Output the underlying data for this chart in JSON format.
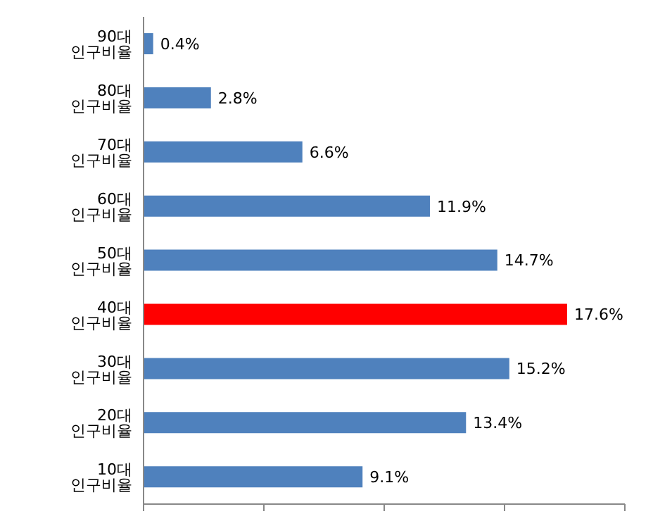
{
  "chart_data": {
    "type": "bar",
    "orientation": "horizontal",
    "categories": [
      "90대 인구비율",
      "80대 인구비율",
      "70대 인구비율",
      "60대 인구비율",
      "50대 인구비율",
      "40대 인구비율",
      "30대 인구비율",
      "20대 인구비율",
      "10대 인구비율"
    ],
    "values": [
      0.4,
      2.8,
      6.6,
      11.9,
      14.7,
      17.6,
      15.2,
      13.4,
      9.1
    ],
    "colors": [
      "#4f81bd",
      "#4f81bd",
      "#4f81bd",
      "#4f81bd",
      "#4f81bd",
      "#ff0000",
      "#4f81bd",
      "#4f81bd",
      "#4f81bd"
    ],
    "value_labels": [
      "0.4%",
      "2.8%",
      "6.6%",
      "11.9%",
      "14.7%",
      "17.6%",
      "15.2%",
      "13.4%",
      "9.1%"
    ],
    "xlim": [
      0,
      20
    ],
    "xticks": [
      {
        "value": 0,
        "label": null
      },
      {
        "value": 5,
        "label": null
      },
      {
        "value": 10,
        "label": null
      },
      {
        "value": 15,
        "label": null
      },
      {
        "value": 20,
        "label": null
      }
    ],
    "tick_labels": "y",
    "grid": false,
    "legend": false
  }
}
